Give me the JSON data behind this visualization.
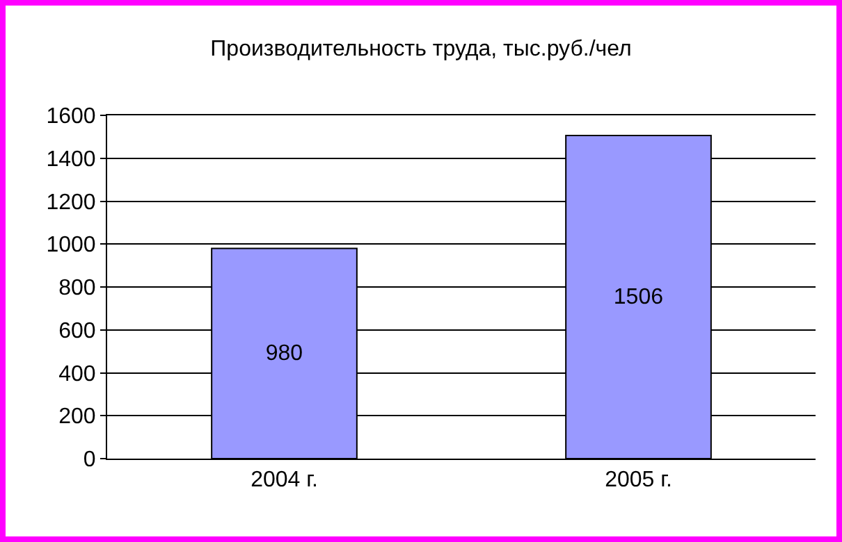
{
  "chart_data": {
    "type": "bar",
    "title": "Производительность труда, тыс.руб./чел",
    "categories": [
      "2004 г.",
      "2005 г."
    ],
    "values": [
      980,
      1506
    ],
    "color": "#9999ff",
    "ylim": [
      0,
      1600
    ],
    "yticks": [
      0,
      200,
      400,
      600,
      800,
      1000,
      1200,
      1400,
      1600
    ],
    "grid": "y",
    "data_labels": true
  }
}
